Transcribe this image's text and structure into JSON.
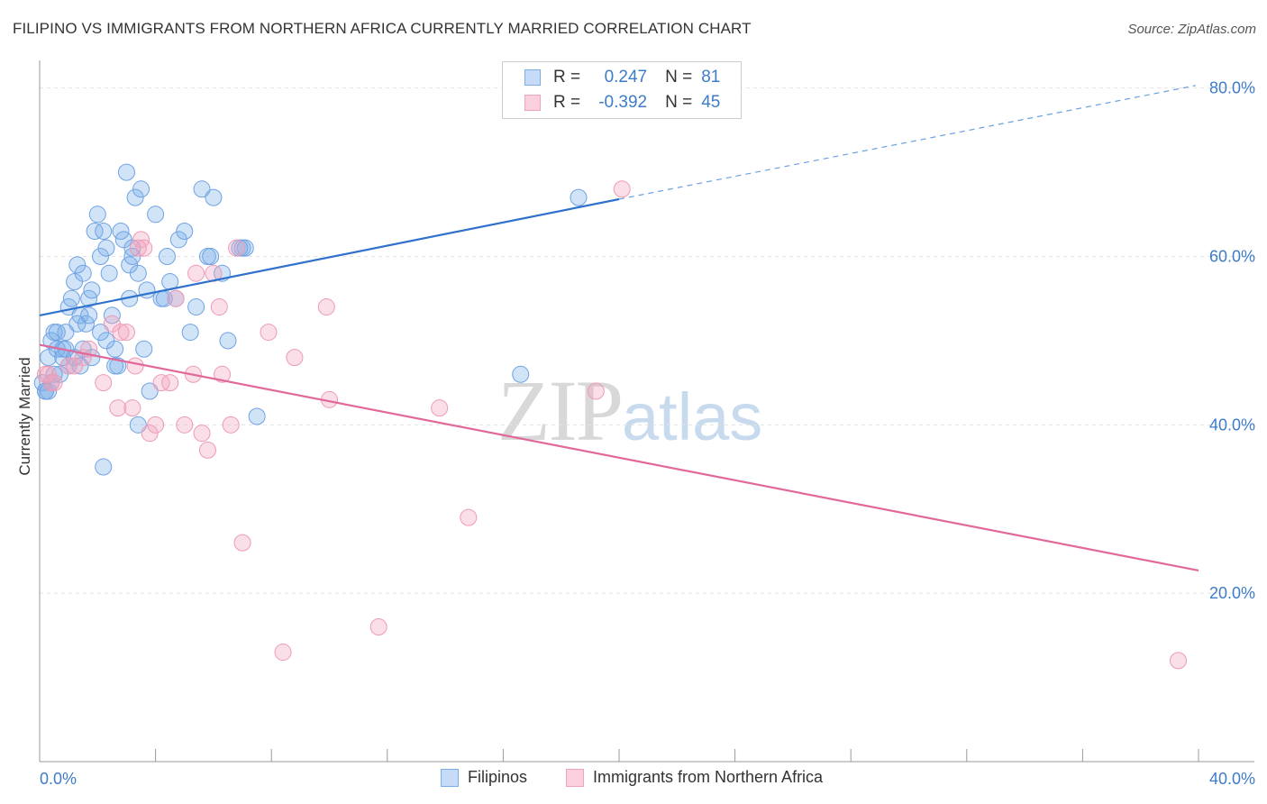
{
  "header": {
    "title": "FILIPINO VS IMMIGRANTS FROM NORTHERN AFRICA CURRENTLY MARRIED CORRELATION CHART",
    "source": "Source: ZipAtlas.com"
  },
  "watermark": {
    "zip": "ZIP",
    "atlas": "atlas"
  },
  "legend": {
    "r_label": "R =",
    "n_label": "N =",
    "rows": [
      {
        "r": "0.247",
        "n": "81",
        "color": "#7aaee8"
      },
      {
        "r": "-0.392",
        "n": "45",
        "color": "#f2a3bc"
      }
    ]
  },
  "bottom_legend": [
    {
      "label": "Filipinos",
      "color": "#7aaee8"
    },
    {
      "label": "Immigrants from Northern Africa",
      "color": "#f2a3bc"
    }
  ],
  "chart_data": {
    "type": "scatter",
    "title": "FILIPINO VS IMMIGRANTS FROM NORTHERN AFRICA CURRENTLY MARRIED CORRELATION CHART",
    "xlabel": "",
    "ylabel": "Currently Married",
    "xlim": [
      0,
      40
    ],
    "ylim": [
      0,
      82
    ],
    "x_tick_labels": [
      "0.0%",
      "40.0%"
    ],
    "y_ticks": [
      20,
      40,
      60,
      80
    ],
    "y_tick_labels": [
      "20.0%",
      "40.0%",
      "60.0%",
      "80.0%"
    ],
    "grid": true,
    "legend_position": "top-center",
    "series": [
      {
        "name": "Filipinos",
        "color": "#5b96df",
        "trend": {
          "x0": 0,
          "y0": 53.0,
          "x1": 20,
          "y1": 66.8,
          "dashed_to": {
            "x": 39.9,
            "y": 80.3
          }
        },
        "points": [
          [
            0.1,
            45
          ],
          [
            0.2,
            44
          ],
          [
            0.3,
            48
          ],
          [
            0.4,
            50
          ],
          [
            0.5,
            51
          ],
          [
            0.6,
            49
          ],
          [
            0.7,
            46
          ],
          [
            0.8,
            49
          ],
          [
            0.9,
            51
          ],
          [
            1.0,
            47
          ],
          [
            1.0,
            54
          ],
          [
            1.1,
            55
          ],
          [
            1.2,
            57
          ],
          [
            1.3,
            59
          ],
          [
            1.4,
            53
          ],
          [
            1.5,
            58
          ],
          [
            1.6,
            52
          ],
          [
            1.7,
            55
          ],
          [
            1.8,
            56
          ],
          [
            1.9,
            63
          ],
          [
            2.0,
            65
          ],
          [
            2.1,
            60
          ],
          [
            2.2,
            63
          ],
          [
            2.3,
            61
          ],
          [
            2.4,
            58
          ],
          [
            2.5,
            53
          ],
          [
            2.6,
            49
          ],
          [
            2.7,
            47
          ],
          [
            2.8,
            63
          ],
          [
            2.9,
            62
          ],
          [
            3.0,
            70
          ],
          [
            3.1,
            59
          ],
          [
            3.2,
            61
          ],
          [
            3.3,
            67
          ],
          [
            3.4,
            58
          ],
          [
            3.5,
            68
          ],
          [
            3.6,
            49
          ],
          [
            3.7,
            56
          ],
          [
            3.8,
            44
          ],
          [
            4.0,
            65
          ],
          [
            4.2,
            55
          ],
          [
            4.4,
            60
          ],
          [
            4.5,
            57
          ],
          [
            4.7,
            55
          ],
          [
            4.8,
            62
          ],
          [
            5.0,
            63
          ],
          [
            5.2,
            51
          ],
          [
            5.4,
            54
          ],
          [
            5.6,
            68
          ],
          [
            5.8,
            60
          ],
          [
            6.0,
            67
          ],
          [
            6.3,
            58
          ],
          [
            6.5,
            50
          ],
          [
            7.0,
            61
          ],
          [
            7.5,
            41
          ],
          [
            0.6,
            51
          ],
          [
            0.8,
            48
          ],
          [
            1.2,
            48
          ],
          [
            1.5,
            49
          ],
          [
            1.7,
            53
          ],
          [
            2.3,
            50
          ],
          [
            0.3,
            44
          ],
          [
            0.5,
            46
          ],
          [
            1.4,
            47
          ],
          [
            2.6,
            47
          ],
          [
            3.4,
            40
          ],
          [
            2.2,
            35
          ],
          [
            3.1,
            55
          ],
          [
            5.9,
            60
          ],
          [
            18.6,
            67
          ],
          [
            16.6,
            46
          ],
          [
            7.1,
            61
          ],
          [
            0.9,
            49
          ],
          [
            1.3,
            52
          ],
          [
            0.4,
            45
          ],
          [
            0.2,
            44
          ],
          [
            4.3,
            55
          ],
          [
            2.1,
            51
          ],
          [
            1.8,
            48
          ],
          [
            3.2,
            60
          ],
          [
            6.9,
            61
          ]
        ]
      },
      {
        "name": "Immigrants from Northern Africa",
        "color": "#ee8fb0",
        "trend": {
          "x0": 0,
          "y0": 49.5,
          "x1": 40,
          "y1": 22.7
        },
        "points": [
          [
            0.2,
            46
          ],
          [
            0.4,
            45
          ],
          [
            0.5,
            45
          ],
          [
            1.0,
            47
          ],
          [
            1.5,
            48
          ],
          [
            1.7,
            49
          ],
          [
            2.2,
            45
          ],
          [
            2.5,
            52
          ],
          [
            2.7,
            42
          ],
          [
            3.0,
            51
          ],
          [
            3.2,
            42
          ],
          [
            3.3,
            47
          ],
          [
            3.5,
            62
          ],
          [
            3.6,
            61
          ],
          [
            3.8,
            39
          ],
          [
            4.0,
            40
          ],
          [
            4.2,
            45
          ],
          [
            4.5,
            45
          ],
          [
            4.7,
            55
          ],
          [
            5.0,
            40
          ],
          [
            5.3,
            46
          ],
          [
            5.4,
            58
          ],
          [
            5.6,
            39
          ],
          [
            5.8,
            37
          ],
          [
            6.0,
            58
          ],
          [
            6.2,
            54
          ],
          [
            6.3,
            46
          ],
          [
            6.6,
            40
          ],
          [
            6.8,
            61
          ],
          [
            7.0,
            26
          ],
          [
            7.9,
            51
          ],
          [
            8.4,
            13
          ],
          [
            8.8,
            48
          ],
          [
            9.9,
            54
          ],
          [
            10.0,
            43
          ],
          [
            11.7,
            16
          ],
          [
            13.8,
            42
          ],
          [
            14.8,
            29
          ],
          [
            19.2,
            44
          ],
          [
            20.1,
            68
          ],
          [
            39.3,
            12
          ],
          [
            0.3,
            46
          ],
          [
            1.2,
            47
          ],
          [
            2.8,
            51
          ],
          [
            3.4,
            61
          ]
        ]
      }
    ]
  }
}
